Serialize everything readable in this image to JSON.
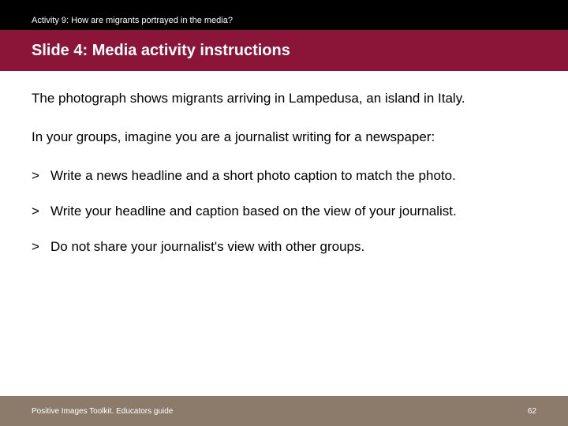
{
  "header": {
    "activity_label": "Activity 9: How are migrants portrayed in the media?",
    "slide_title": "Slide 4: Media activity instructions"
  },
  "content": {
    "para1": "The photograph shows migrants arriving in Lampedusa, an island in Italy.",
    "para2": "In your groups, imagine you are a journalist writing for a newspaper:",
    "bullets": [
      "Write a news headline and a short photo caption to match the photo.",
      "Write your headline and caption based on the view of your journalist.",
      "Do not share your journalist's view with other groups."
    ],
    "bullet_marker": ">"
  },
  "footer": {
    "left": "Positive Images Toolkit. Educators guide",
    "page": "62"
  },
  "colors": {
    "top_bg": "#000000",
    "title_bg": "#8a1538",
    "footer_bg": "#8c7a6b",
    "text_light": "#ffffff",
    "text_body": "#000000"
  }
}
